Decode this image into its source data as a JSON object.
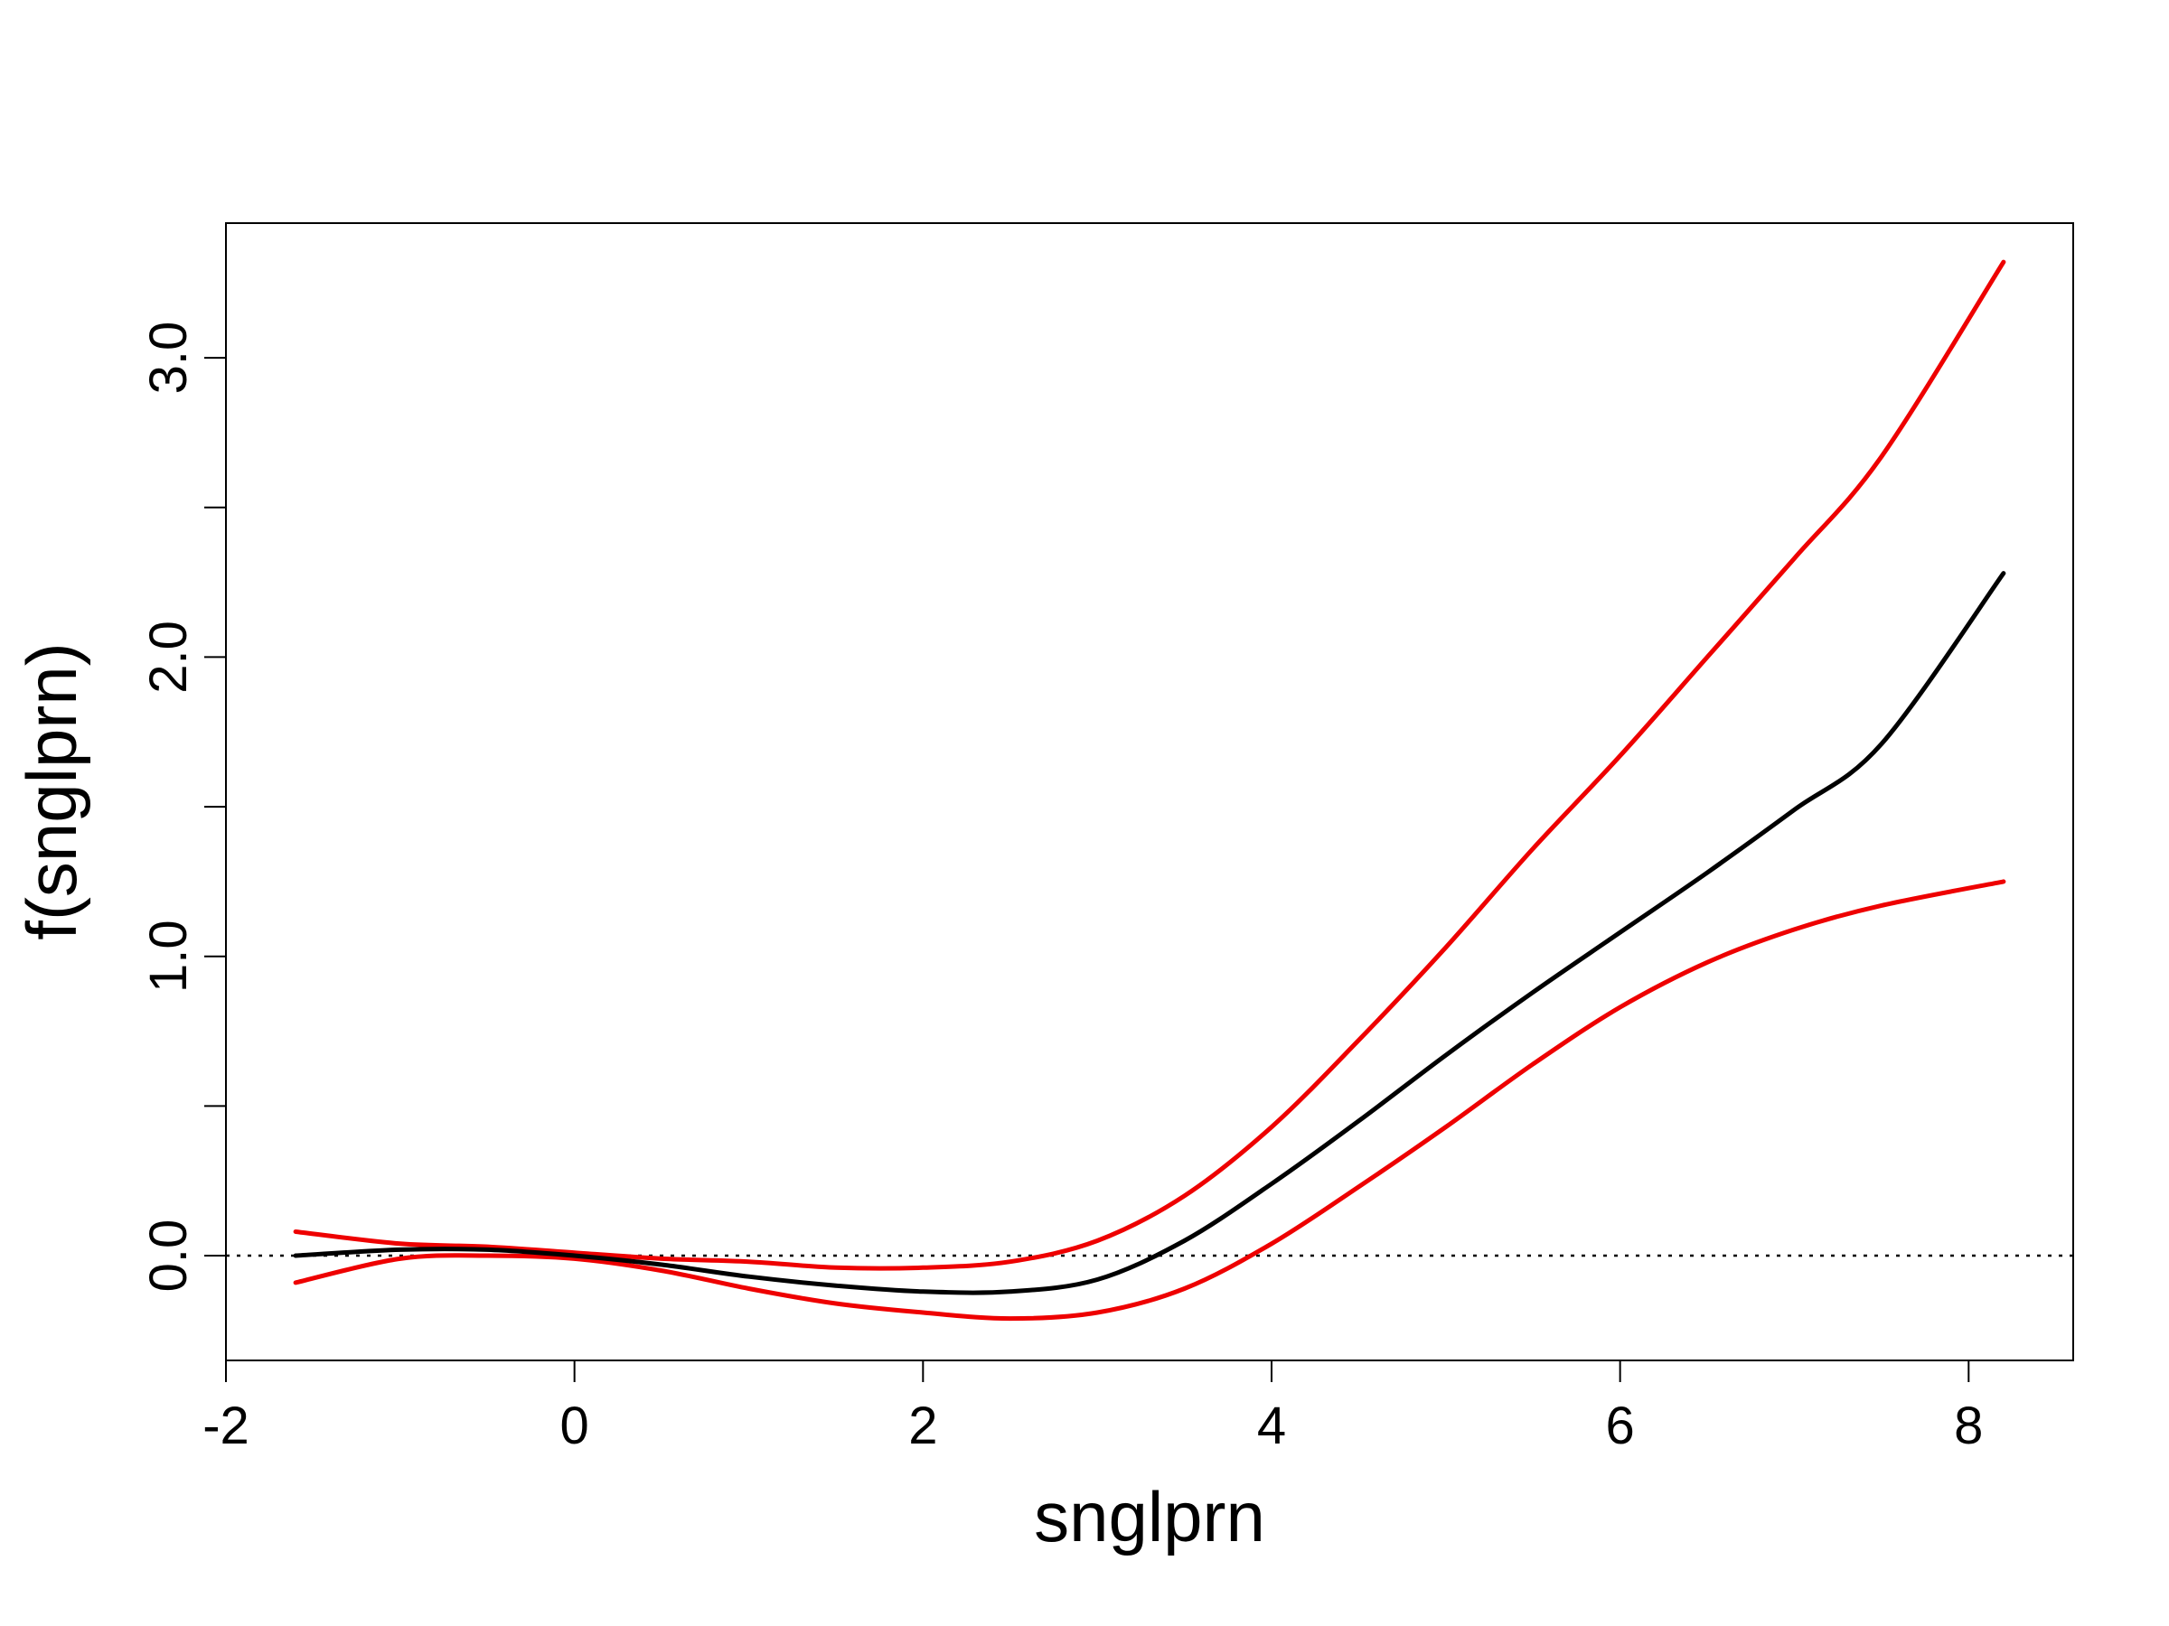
{
  "chart_data": {
    "type": "line",
    "title": "",
    "xlabel": "snglprn",
    "ylabel": "f(snglprn)",
    "xlim": [
      -2,
      8.6
    ],
    "ylim": [
      -0.35,
      3.45
    ],
    "xticks": [
      -2,
      0,
      2,
      4,
      6,
      8
    ],
    "xtick_labels": [
      "-2",
      "0",
      "2",
      "4",
      "6",
      "8"
    ],
    "yticks": [
      0.0,
      0.5,
      1.0,
      1.5,
      2.0,
      2.5,
      3.0
    ],
    "ytick_labels": [
      "0.0",
      "",
      "1.0",
      "",
      "2.0",
      "",
      "3.0"
    ],
    "reference_line": {
      "y": 0,
      "style": "dotted",
      "color": "#000000"
    },
    "grid": false,
    "legend": "none",
    "x": [
      -1.6,
      -1.0,
      -0.5,
      0.0,
      0.5,
      1.0,
      1.5,
      2.0,
      2.5,
      3.0,
      3.5,
      4.0,
      4.5,
      5.0,
      5.5,
      6.0,
      6.5,
      7.0,
      7.5,
      8.2
    ],
    "series": [
      {
        "role": "estimate",
        "color": "#000000",
        "values": [
          0.0,
          0.02,
          0.02,
          0.0,
          -0.03,
          -0.07,
          -0.1,
          -0.12,
          -0.12,
          -0.08,
          0.05,
          0.24,
          0.45,
          0.67,
          0.88,
          1.08,
          1.28,
          1.49,
          1.71,
          2.28
        ]
      },
      {
        "role": "upper-band",
        "color": "#ee0000",
        "values": [
          0.08,
          0.04,
          0.03,
          0.01,
          -0.01,
          -0.02,
          -0.04,
          -0.04,
          -0.02,
          0.05,
          0.2,
          0.43,
          0.72,
          1.03,
          1.36,
          1.67,
          2.0,
          2.33,
          2.67,
          3.32
        ]
      },
      {
        "role": "lower-band",
        "color": "#ee0000",
        "values": [
          -0.09,
          -0.01,
          0.0,
          -0.01,
          -0.05,
          -0.11,
          -0.16,
          -0.19,
          -0.21,
          -0.19,
          -0.11,
          0.04,
          0.23,
          0.43,
          0.64,
          0.83,
          0.98,
          1.09,
          1.17,
          1.25
        ]
      }
    ]
  }
}
